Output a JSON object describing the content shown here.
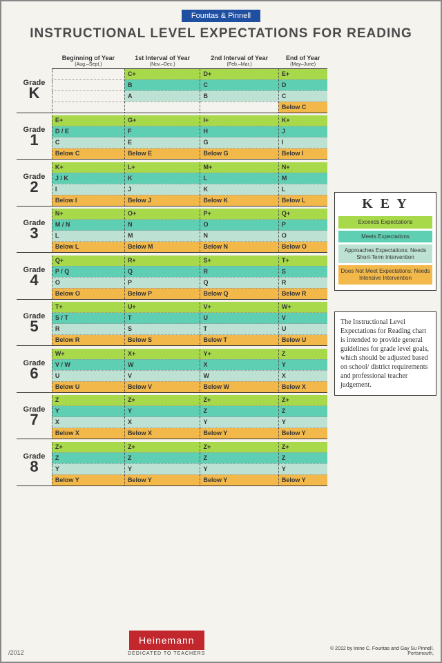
{
  "brand": "Fountas & Pinnell",
  "title": "INSTRUCTIONAL LEVEL EXPECTATIONS FOR READING",
  "columns": [
    {
      "label": "Beginning of Year",
      "sub": "(Aug.–Sept.)"
    },
    {
      "label": "1st Interval of Year",
      "sub": "(Nov.–Dec.)"
    },
    {
      "label": "2nd Interval of Year",
      "sub": "(Feb.–Mar.)"
    },
    {
      "label": "End of Year",
      "sub": "(May–June)"
    }
  ],
  "colors": {
    "exceeds": "#a8d94a",
    "meets": "#5ecfb3",
    "approaches": "#bde2d3",
    "notmeet": "#f3b84a",
    "empty": "#f5f3ee"
  },
  "grades": [
    {
      "label": "Grade",
      "num": "K",
      "rows": [
        [
          [
            "",
            "empty"
          ],
          [
            "C+",
            "exceeds"
          ],
          [
            "D+",
            "exceeds"
          ],
          [
            "E+",
            "exceeds"
          ]
        ],
        [
          [
            "",
            "empty"
          ],
          [
            "B",
            "meets"
          ],
          [
            "C",
            "meets"
          ],
          [
            "D",
            "meets"
          ]
        ],
        [
          [
            "",
            "empty"
          ],
          [
            "A",
            "approaches"
          ],
          [
            "B",
            "approaches"
          ],
          [
            "C",
            "approaches"
          ]
        ],
        [
          [
            "",
            "empty"
          ],
          [
            "",
            "empty"
          ],
          [
            "",
            "empty"
          ],
          [
            "Below C",
            "notmeet"
          ]
        ]
      ]
    },
    {
      "label": "Grade",
      "num": "1",
      "rows": [
        [
          [
            "E+",
            "exceeds"
          ],
          [
            "G+",
            "exceeds"
          ],
          [
            "I+",
            "exceeds"
          ],
          [
            "K+",
            "exceeds"
          ]
        ],
        [
          [
            "D / E",
            "meets"
          ],
          [
            "F",
            "meets"
          ],
          [
            "H",
            "meets"
          ],
          [
            "J",
            "meets"
          ]
        ],
        [
          [
            "C",
            "approaches"
          ],
          [
            "E",
            "approaches"
          ],
          [
            "G",
            "approaches"
          ],
          [
            "I",
            "approaches"
          ]
        ],
        [
          [
            "Below C",
            "notmeet"
          ],
          [
            "Below E",
            "notmeet"
          ],
          [
            "Below G",
            "notmeet"
          ],
          [
            "Below I",
            "notmeet"
          ]
        ]
      ]
    },
    {
      "label": "Grade",
      "num": "2",
      "rows": [
        [
          [
            "K+",
            "exceeds"
          ],
          [
            "L+",
            "exceeds"
          ],
          [
            "M+",
            "exceeds"
          ],
          [
            "N+",
            "exceeds"
          ]
        ],
        [
          [
            "J / K",
            "meets"
          ],
          [
            "K",
            "meets"
          ],
          [
            "L",
            "meets"
          ],
          [
            "M",
            "meets"
          ]
        ],
        [
          [
            "I",
            "approaches"
          ],
          [
            "J",
            "approaches"
          ],
          [
            "K",
            "approaches"
          ],
          [
            "L",
            "approaches"
          ]
        ],
        [
          [
            "Below I",
            "notmeet"
          ],
          [
            "Below J",
            "notmeet"
          ],
          [
            "Below K",
            "notmeet"
          ],
          [
            "Below L",
            "notmeet"
          ]
        ]
      ]
    },
    {
      "label": "Grade",
      "num": "3",
      "rows": [
        [
          [
            "N+",
            "exceeds"
          ],
          [
            "O+",
            "exceeds"
          ],
          [
            "P+",
            "exceeds"
          ],
          [
            "Q+",
            "exceeds"
          ]
        ],
        [
          [
            "M / N",
            "meets"
          ],
          [
            "N",
            "meets"
          ],
          [
            "O",
            "meets"
          ],
          [
            "P",
            "meets"
          ]
        ],
        [
          [
            "L",
            "approaches"
          ],
          [
            "M",
            "approaches"
          ],
          [
            "N",
            "approaches"
          ],
          [
            "O",
            "approaches"
          ]
        ],
        [
          [
            "Below L",
            "notmeet"
          ],
          [
            "Below M",
            "notmeet"
          ],
          [
            "Below N",
            "notmeet"
          ],
          [
            "Below O",
            "notmeet"
          ]
        ]
      ]
    },
    {
      "label": "Grade",
      "num": "4",
      "rows": [
        [
          [
            "Q+",
            "exceeds"
          ],
          [
            "R+",
            "exceeds"
          ],
          [
            "S+",
            "exceeds"
          ],
          [
            "T+",
            "exceeds"
          ]
        ],
        [
          [
            "P / Q",
            "meets"
          ],
          [
            "Q",
            "meets"
          ],
          [
            "R",
            "meets"
          ],
          [
            "S",
            "meets"
          ]
        ],
        [
          [
            "O",
            "approaches"
          ],
          [
            "P",
            "approaches"
          ],
          [
            "Q",
            "approaches"
          ],
          [
            "R",
            "approaches"
          ]
        ],
        [
          [
            "Below O",
            "notmeet"
          ],
          [
            "Below P",
            "notmeet"
          ],
          [
            "Below Q",
            "notmeet"
          ],
          [
            "Below R",
            "notmeet"
          ]
        ]
      ]
    },
    {
      "label": "Grade",
      "num": "5",
      "rows": [
        [
          [
            "T+",
            "exceeds"
          ],
          [
            "U+",
            "exceeds"
          ],
          [
            "V+",
            "exceeds"
          ],
          [
            "W+",
            "exceeds"
          ]
        ],
        [
          [
            "S / T",
            "meets"
          ],
          [
            "T",
            "meets"
          ],
          [
            "U",
            "meets"
          ],
          [
            "V",
            "meets"
          ]
        ],
        [
          [
            "R",
            "approaches"
          ],
          [
            "S",
            "approaches"
          ],
          [
            "T",
            "approaches"
          ],
          [
            "U",
            "approaches"
          ]
        ],
        [
          [
            "Below R",
            "notmeet"
          ],
          [
            "Below S",
            "notmeet"
          ],
          [
            "Below T",
            "notmeet"
          ],
          [
            "Below U",
            "notmeet"
          ]
        ]
      ]
    },
    {
      "label": "Grade",
      "num": "6",
      "rows": [
        [
          [
            "W+",
            "exceeds"
          ],
          [
            "X+",
            "exceeds"
          ],
          [
            "Y+",
            "exceeds"
          ],
          [
            "Z",
            "exceeds"
          ]
        ],
        [
          [
            "V / W",
            "meets"
          ],
          [
            "W",
            "meets"
          ],
          [
            "X",
            "meets"
          ],
          [
            "Y",
            "meets"
          ]
        ],
        [
          [
            "U",
            "approaches"
          ],
          [
            "V",
            "approaches"
          ],
          [
            "W",
            "approaches"
          ],
          [
            "X",
            "approaches"
          ]
        ],
        [
          [
            "Below U",
            "notmeet"
          ],
          [
            "Below V",
            "notmeet"
          ],
          [
            "Below W",
            "notmeet"
          ],
          [
            "Below X",
            "notmeet"
          ]
        ]
      ]
    },
    {
      "label": "Grade",
      "num": "7",
      "rows": [
        [
          [
            "Z",
            "exceeds"
          ],
          [
            "Z+",
            "exceeds"
          ],
          [
            "Z+",
            "exceeds"
          ],
          [
            "Z+",
            "exceeds"
          ]
        ],
        [
          [
            "Y",
            "meets"
          ],
          [
            "Y",
            "meets"
          ],
          [
            "Z",
            "meets"
          ],
          [
            "Z",
            "meets"
          ]
        ],
        [
          [
            "X",
            "approaches"
          ],
          [
            "X",
            "approaches"
          ],
          [
            "Y",
            "approaches"
          ],
          [
            "Y",
            "approaches"
          ]
        ],
        [
          [
            "Below X",
            "notmeet"
          ],
          [
            "Below X",
            "notmeet"
          ],
          [
            "Below Y",
            "notmeet"
          ],
          [
            "Below Y",
            "notmeet"
          ]
        ]
      ]
    },
    {
      "label": "Grade",
      "num": "8",
      "rows": [
        [
          [
            "Z+",
            "exceeds"
          ],
          [
            "Z+",
            "exceeds"
          ],
          [
            "Z+",
            "exceeds"
          ],
          [
            "Z+",
            "exceeds"
          ]
        ],
        [
          [
            "Z",
            "meets"
          ],
          [
            "Z",
            "meets"
          ],
          [
            "Z",
            "meets"
          ],
          [
            "Z",
            "meets"
          ]
        ],
        [
          [
            "Y",
            "approaches"
          ],
          [
            "Y",
            "approaches"
          ],
          [
            "Y",
            "approaches"
          ],
          [
            "Y",
            "approaches"
          ]
        ],
        [
          [
            "Below Y",
            "notmeet"
          ],
          [
            "Below Y",
            "notmeet"
          ],
          [
            "Below Y",
            "notmeet"
          ],
          [
            "Below Y",
            "notmeet"
          ]
        ]
      ]
    }
  ],
  "key": {
    "title": "K E Y",
    "items": [
      {
        "label": "Exceeds Expectations",
        "color": "exceeds"
      },
      {
        "label": "Meets Expectations",
        "color": "meets"
      },
      {
        "label": "Approaches Expectations: Needs Short-Term Intervention",
        "color": "approaches"
      },
      {
        "label": "Does Not Meet Expectations: Needs Intensive Intervention",
        "color": "notmeet"
      }
    ]
  },
  "note": "The Instructional Level Expectations for Reading chart is intended to provide general guidelines for grade level goals, which should be adjusted based on school/ district requirements and professional teacher judgement.",
  "footer": {
    "date": "/2012",
    "logo": "Heinemann",
    "logo_sub": "DEDICATED TO TEACHERS",
    "copyright": "© 2012 by Irene C. Fountas and Gay Su Pinnell. Portsmouth,"
  }
}
